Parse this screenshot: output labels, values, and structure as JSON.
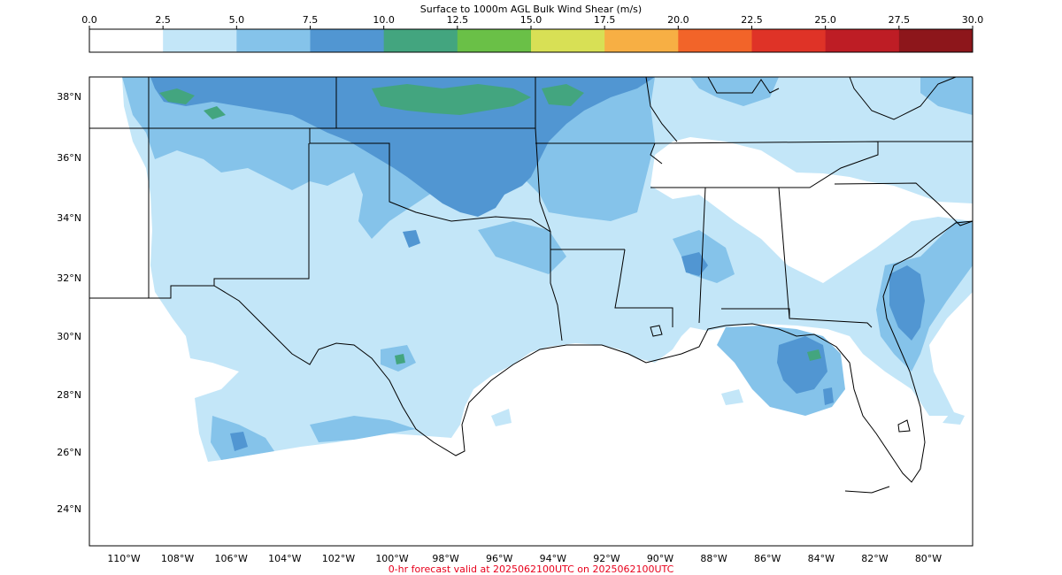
{
  "figure": {
    "title": "Surface to 1000m AGL Bulk Wind Shear (m/s)",
    "footer": "0-hr forecast valid at 2025062100UTC on 2025062100UTC",
    "footer_color": "#e8001c"
  },
  "colorbar": {
    "ticks": [
      "0.0",
      "2.5",
      "5.0",
      "7.5",
      "10.0",
      "12.5",
      "15.0",
      "17.5",
      "20.0",
      "22.5",
      "25.0",
      "27.5",
      "30.0"
    ],
    "colors": [
      "#ffffff",
      "#c3e6f8",
      "#85c3ea",
      "#5196d2",
      "#43a57f",
      "#6ac047",
      "#d8e055",
      "#f7af44",
      "#f26429",
      "#df3327",
      "#be1d25",
      "#8d161b"
    ]
  },
  "map": {
    "lat_labels": [
      "38°N",
      "36°N",
      "34°N",
      "32°N",
      "30°N",
      "28°N",
      "26°N",
      "24°N"
    ],
    "lon_labels": [
      "110°W",
      "108°W",
      "106°W",
      "104°W",
      "102°W",
      "100°W",
      "98°W",
      "96°W",
      "94°W",
      "92°W",
      "90°W",
      "88°W",
      "86°W",
      "84°W",
      "82°W",
      "80°W"
    ]
  }
}
